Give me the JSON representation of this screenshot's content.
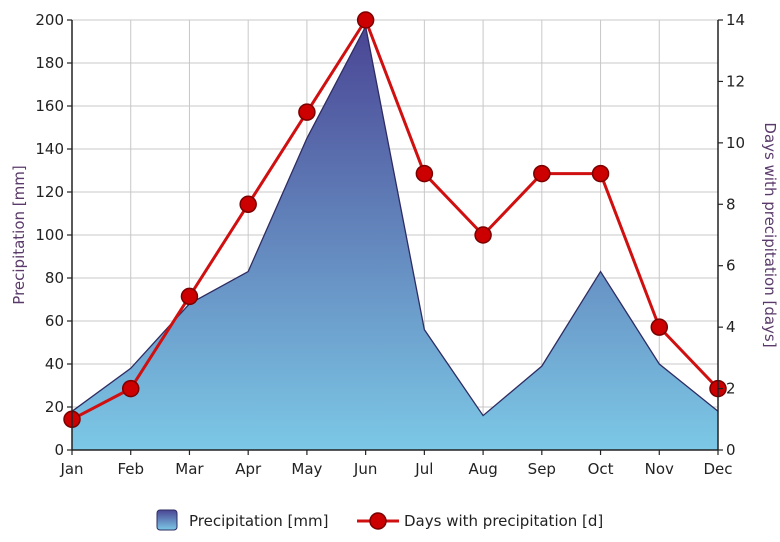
{
  "chart_data": {
    "type": "area+line",
    "categories": [
      "Jan",
      "Feb",
      "Mar",
      "Apr",
      "May",
      "Jun",
      "Jul",
      "Aug",
      "Sep",
      "Oct",
      "Nov",
      "Dec"
    ],
    "series": [
      {
        "name": "Precipitation [mm]",
        "type": "area",
        "axis": "left",
        "values": [
          18,
          38,
          68,
          83,
          145,
          197,
          56,
          16,
          39,
          83,
          40,
          18
        ]
      },
      {
        "name": "Days with precipitation [d]",
        "type": "line",
        "axis": "right",
        "values": [
          1,
          2,
          5,
          8,
          11,
          14,
          9,
          7,
          9,
          9,
          4,
          2
        ]
      }
    ],
    "ylabel_left": "Precipitation [mm]",
    "ylabel_right": "Days with precipitation [days]",
    "ylim_left": [
      0,
      200
    ],
    "ylim_right": [
      0,
      14
    ],
    "yticks_left": [
      0,
      20,
      40,
      60,
      80,
      100,
      120,
      140,
      160,
      180,
      200
    ],
    "yticks_right": [
      0,
      2,
      4,
      6,
      8,
      10,
      12,
      14
    ],
    "grid": true,
    "legend_position": "bottom-center",
    "colors": {
      "area_top": "#4a4594",
      "area_bottom": "#7cc8e6",
      "area_stroke": "#2e2c62",
      "line": "#d01010",
      "marker": "#cc0000",
      "marker_stroke": "#7a0000",
      "grid": "#c8c8c8",
      "axis": "#222222"
    }
  }
}
